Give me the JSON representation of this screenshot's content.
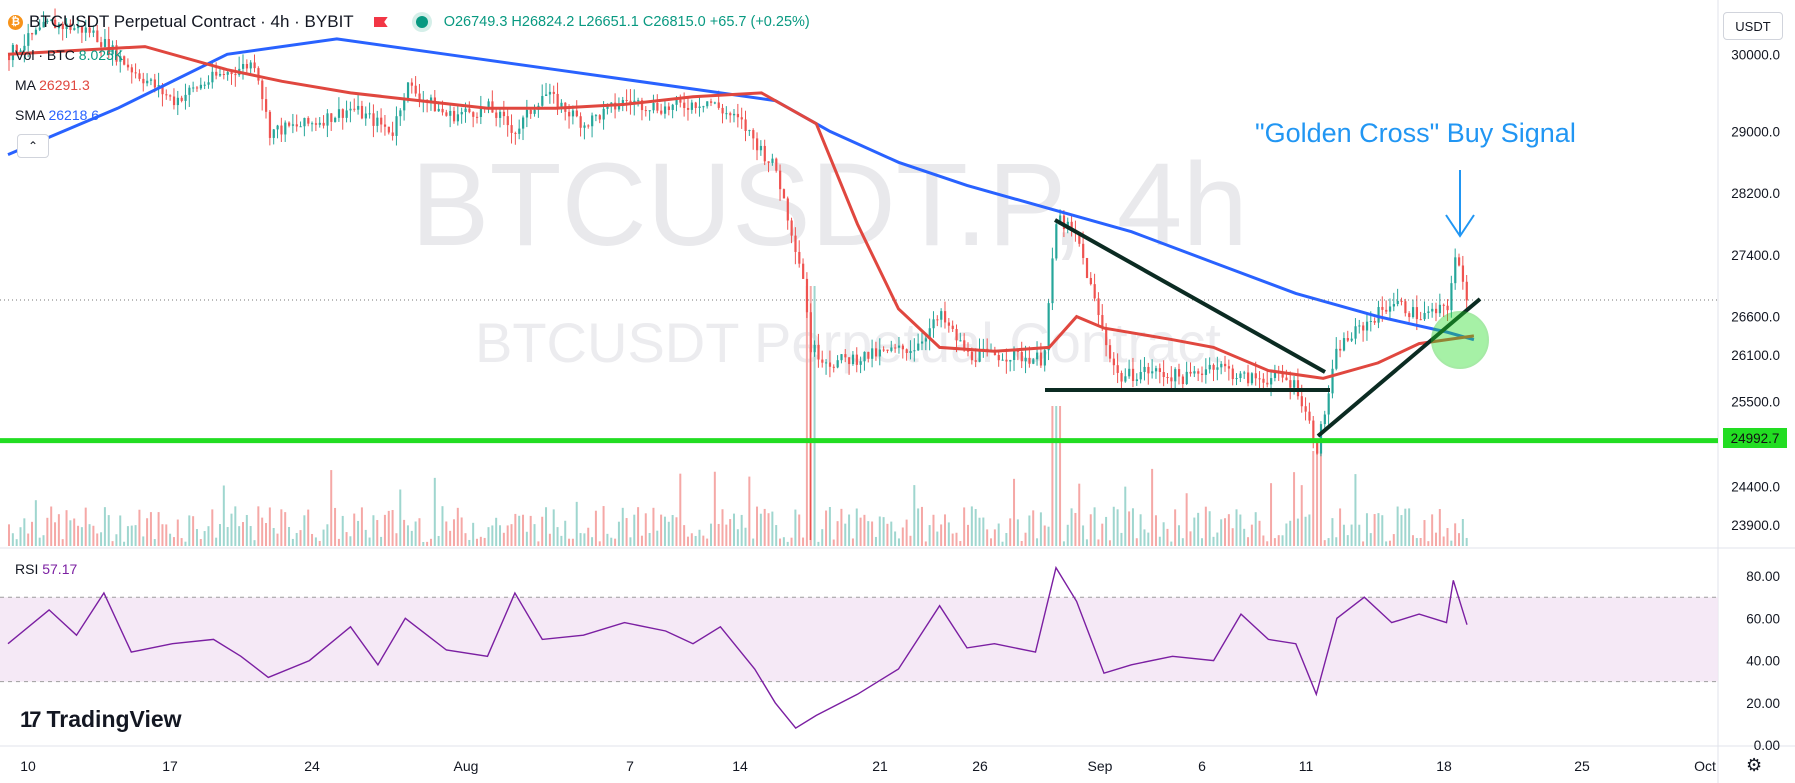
{
  "header": {
    "symbol_title": "BTCUSDT Perpetual Contract · 4h · BYBIT",
    "ohlc": {
      "open": "O26749.3",
      "high": "H26824.2",
      "low": "L26651.1",
      "close": "C26815.0",
      "change": "+65.7 (+0.25%)"
    }
  },
  "currency_button": "USDT",
  "watermark": {
    "big": "BTCUSDT.P, 4h",
    "small": "BTCUSDT Perpetual Contract"
  },
  "legend": {
    "vol_label": "Vol · BTC",
    "vol_value": "8.025K",
    "ma_label": "MA",
    "ma_value": "26291.3",
    "sma_label": "SMA",
    "sma_value": "26218.6"
  },
  "annotation": "\"Golden Cross\" Buy Signal",
  "support_level": "24992.7",
  "rsi": {
    "label": "RSI",
    "value": "57.17"
  },
  "branding": "TradingView",
  "colors": {
    "ma": "#e0473f",
    "sma": "#2962ff",
    "support": "#22dd22",
    "rsi": "#7b1fa2",
    "up": "#26a69a",
    "down": "#ef5350",
    "annotation": "#2196f3"
  },
  "icons": [
    "bitcoin-icon",
    "flag-icon",
    "market-status-icon",
    "chevron-up-icon",
    "settings-icon"
  ],
  "chart_data": [
    {
      "type": "candlestick",
      "title": "BTCUSDT Perpetual Contract · 4h · BYBIT",
      "ylim": [
        23600,
        30600
      ],
      "y_ticks": [
        "30000.0",
        "29000.0",
        "28200.0",
        "27400.0",
        "26600.0",
        "26100.0",
        "25500.0",
        "24400.0",
        "23900.0"
      ],
      "x_ticks": [
        "10",
        "17",
        "24",
        "Aug",
        "7",
        "14",
        "21",
        "26",
        "Sep",
        "6",
        "11",
        "18",
        "25",
        "Oct"
      ],
      "price_path": [
        [
          0,
          30000
        ],
        [
          0.03,
          30400
        ],
        [
          0.06,
          30300
        ],
        [
          0.09,
          29800
        ],
        [
          0.12,
          29400
        ],
        [
          0.15,
          29700
        ],
        [
          0.18,
          29900
        ],
        [
          0.19,
          29000
        ],
        [
          0.22,
          29100
        ],
        [
          0.25,
          29300
        ],
        [
          0.28,
          29000
        ],
        [
          0.29,
          29600
        ],
        [
          0.32,
          29200
        ],
        [
          0.35,
          29300
        ],
        [
          0.37,
          29000
        ],
        [
          0.39,
          29500
        ],
        [
          0.42,
          29100
        ],
        [
          0.45,
          29400
        ],
        [
          0.48,
          29300
        ],
        [
          0.51,
          29400
        ],
        [
          0.535,
          29100
        ],
        [
          0.56,
          28500
        ],
        [
          0.58,
          27100
        ],
        [
          0.585,
          26200
        ],
        [
          0.6,
          26000
        ],
        [
          0.63,
          26100
        ],
        [
          0.66,
          26200
        ],
        [
          0.68,
          26600
        ],
        [
          0.7,
          26100
        ],
        [
          0.73,
          26100
        ],
        [
          0.755,
          26050
        ],
        [
          0.765,
          27900
        ],
        [
          0.78,
          27600
        ],
        [
          0.8,
          26300
        ],
        [
          0.81,
          25800
        ],
        [
          0.83,
          25900
        ],
        [
          0.86,
          25800
        ],
        [
          0.88,
          26000
        ],
        [
          0.9,
          25800
        ],
        [
          0.93,
          25800
        ],
        [
          0.94,
          25700
        ],
        [
          0.955,
          24900
        ],
        [
          0.97,
          26200
        ],
        [
          0.99,
          26500
        ],
        [
          1.01,
          26800
        ],
        [
          1.03,
          26600
        ],
        [
          1.05,
          26700
        ],
        [
          1.055,
          27400
        ],
        [
          1.065,
          26800
        ]
      ],
      "ma": [
        [
          0,
          30000
        ],
        [
          0.1,
          30100
        ],
        [
          0.16,
          29800
        ],
        [
          0.2,
          29650
        ],
        [
          0.25,
          29500
        ],
        [
          0.3,
          29400
        ],
        [
          0.35,
          29300
        ],
        [
          0.4,
          29300
        ],
        [
          0.45,
          29350
        ],
        [
          0.5,
          29450
        ],
        [
          0.55,
          29500
        ],
        [
          0.59,
          29100
        ],
        [
          0.62,
          27800
        ],
        [
          0.65,
          26700
        ],
        [
          0.68,
          26200
        ],
        [
          0.72,
          26150
        ],
        [
          0.76,
          26200
        ],
        [
          0.78,
          26600
        ],
        [
          0.8,
          26450
        ],
        [
          0.85,
          26300
        ],
        [
          0.88,
          26200
        ],
        [
          0.92,
          25900
        ],
        [
          0.96,
          25800
        ],
        [
          1.0,
          26000
        ],
        [
          1.03,
          26250
        ],
        [
          1.07,
          26350
        ]
      ],
      "sma": [
        [
          0,
          28700
        ],
        [
          0.08,
          29300
        ],
        [
          0.16,
          30000
        ],
        [
          0.24,
          30200
        ],
        [
          0.32,
          30000
        ],
        [
          0.4,
          29800
        ],
        [
          0.48,
          29600
        ],
        [
          0.56,
          29400
        ],
        [
          0.6,
          29000
        ],
        [
          0.65,
          28600
        ],
        [
          0.7,
          28300
        ],
        [
          0.76,
          28000
        ],
        [
          0.82,
          27700
        ],
        [
          0.88,
          27300
        ],
        [
          0.94,
          26900
        ],
        [
          1.0,
          26600
        ],
        [
          1.05,
          26400
        ],
        [
          1.07,
          26300
        ]
      ],
      "support_line": 24992.7
    },
    {
      "type": "line",
      "title": "RSI",
      "ylim": [
        0,
        90
      ],
      "y_ticks": [
        "80.00",
        "60.00",
        "40.00",
        "20.00",
        "0.00"
      ],
      "band": [
        30,
        70
      ],
      "values": [
        [
          0,
          48
        ],
        [
          0.03,
          64
        ],
        [
          0.05,
          52
        ],
        [
          0.07,
          72
        ],
        [
          0.09,
          44
        ],
        [
          0.12,
          48
        ],
        [
          0.15,
          50
        ],
        [
          0.17,
          42
        ],
        [
          0.19,
          32
        ],
        [
          0.22,
          40
        ],
        [
          0.25,
          56
        ],
        [
          0.27,
          38
        ],
        [
          0.29,
          60
        ],
        [
          0.32,
          45
        ],
        [
          0.35,
          42
        ],
        [
          0.37,
          72
        ],
        [
          0.39,
          50
        ],
        [
          0.42,
          52
        ],
        [
          0.45,
          58
        ],
        [
          0.48,
          54
        ],
        [
          0.5,
          48
        ],
        [
          0.52,
          56
        ],
        [
          0.545,
          36
        ],
        [
          0.56,
          20
        ],
        [
          0.575,
          8
        ],
        [
          0.59,
          14
        ],
        [
          0.62,
          24
        ],
        [
          0.65,
          36
        ],
        [
          0.68,
          66
        ],
        [
          0.7,
          46
        ],
        [
          0.72,
          48
        ],
        [
          0.75,
          44
        ],
        [
          0.765,
          84
        ],
        [
          0.78,
          68
        ],
        [
          0.8,
          34
        ],
        [
          0.82,
          38
        ],
        [
          0.85,
          42
        ],
        [
          0.88,
          40
        ],
        [
          0.9,
          62
        ],
        [
          0.92,
          50
        ],
        [
          0.94,
          48
        ],
        [
          0.955,
          24
        ],
        [
          0.97,
          60
        ],
        [
          0.99,
          70
        ],
        [
          1.01,
          58
        ],
        [
          1.03,
          62
        ],
        [
          1.05,
          58
        ],
        [
          1.055,
          78
        ],
        [
          1.065,
          57
        ]
      ]
    }
  ]
}
